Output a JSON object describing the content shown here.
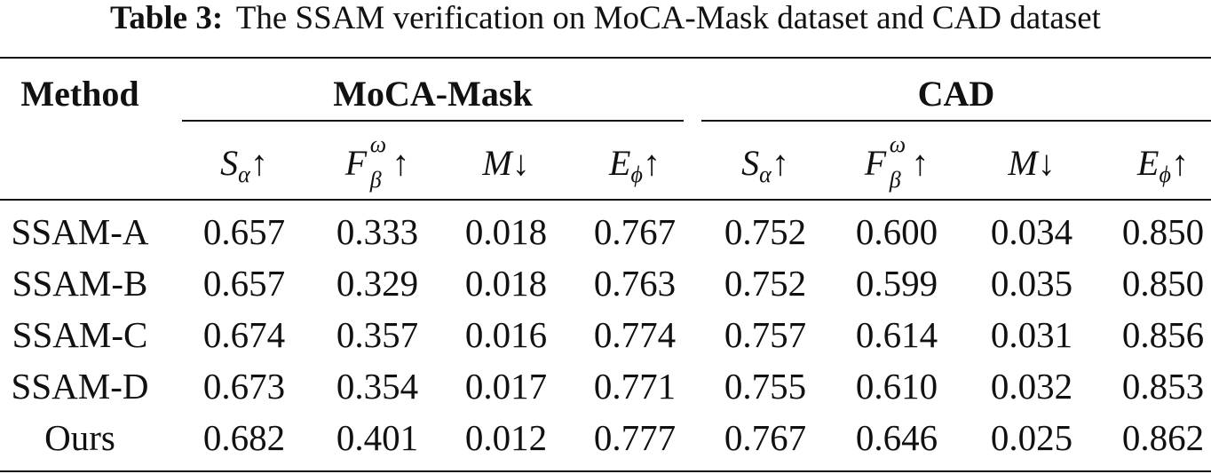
{
  "caption": {
    "label": "Table 3:",
    "text": "The SSAM verification on MoCA-Mask dataset and CAD dataset"
  },
  "header": {
    "method": "Method",
    "group1": "MoCA-Mask",
    "group2": "CAD"
  },
  "metrics": [
    {
      "base": "S",
      "sub": "α",
      "sup": "",
      "arrow": "↑"
    },
    {
      "base": "F",
      "sub": "β",
      "sup": "ω",
      "arrow": "↑"
    },
    {
      "base": "M",
      "sub": "",
      "sup": "",
      "arrow": "↓"
    },
    {
      "base": "E",
      "sub": "ϕ",
      "sup": "",
      "arrow": "↑"
    }
  ],
  "rows": [
    {
      "method": "SSAM-A",
      "values": [
        "0.657",
        "0.333",
        "0.018",
        "0.767",
        "0.752",
        "0.600",
        "0.034",
        "0.850"
      ]
    },
    {
      "method": "SSAM-B",
      "values": [
        "0.657",
        "0.329",
        "0.018",
        "0.763",
        "0.752",
        "0.599",
        "0.035",
        "0.850"
      ]
    },
    {
      "method": "SSAM-C",
      "values": [
        "0.674",
        "0.357",
        "0.016",
        "0.774",
        "0.757",
        "0.614",
        "0.031",
        "0.856"
      ]
    },
    {
      "method": "SSAM-D",
      "values": [
        "0.673",
        "0.354",
        "0.017",
        "0.771",
        "0.755",
        "0.610",
        "0.032",
        "0.853"
      ]
    },
    {
      "method": "Ours",
      "values": [
        "0.682",
        "0.401",
        "0.012",
        "0.777",
        "0.767",
        "0.646",
        "0.025",
        "0.862"
      ]
    }
  ]
}
